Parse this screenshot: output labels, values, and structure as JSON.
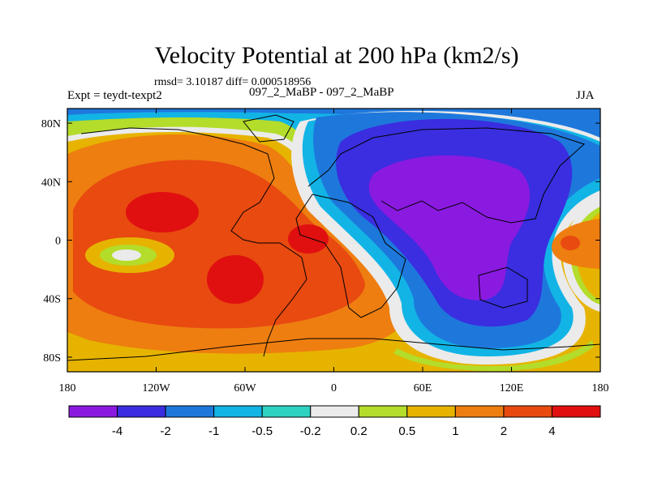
{
  "chart_data": {
    "type": "heatmap",
    "title": "Velocity Potential at 200 hPa (km2/s)",
    "stats_line": "rmsd= 3.10187 diff= 0.000518956",
    "left_label": "Expt = teydt-texpt2",
    "center_label": "097_2_MaBP - 097_2_MaBP",
    "right_label": "JJA",
    "x_tick_labels": [
      "180",
      "120W",
      "60W",
      "0",
      "60E",
      "120E",
      "180"
    ],
    "y_tick_labels": [
      "80N",
      "40N",
      "0",
      "40S",
      "80S"
    ],
    "xlim": [
      -180,
      180
    ],
    "ylim": [
      -90,
      90
    ],
    "colorbar": {
      "labels": [
        "-4",
        "-2",
        "-1",
        "-0.5",
        "-0.2",
        "0.2",
        "0.5",
        "1",
        "2",
        "4"
      ],
      "colors": [
        "#8a1ae0",
        "#3a2ee0",
        "#1e78dc",
        "#12b4e6",
        "#2ed2c0",
        "#ebebeb",
        "#b4dc2a",
        "#e6b400",
        "#ee7e10",
        "#e84a10",
        "#e01010"
      ]
    },
    "field_features": [
      {
        "name": "west-hemisphere-high",
        "level": "2"
      },
      {
        "name": "north-pacific-max",
        "level": "4"
      },
      {
        "name": "south-atlantic-max",
        "level": "4"
      },
      {
        "name": "central-pacific-min",
        "level": "0.2"
      },
      {
        "name": "asia-indian-ocean-low",
        "level": "-4"
      },
      {
        "name": "west-pacific-high",
        "level": "2"
      }
    ]
  }
}
